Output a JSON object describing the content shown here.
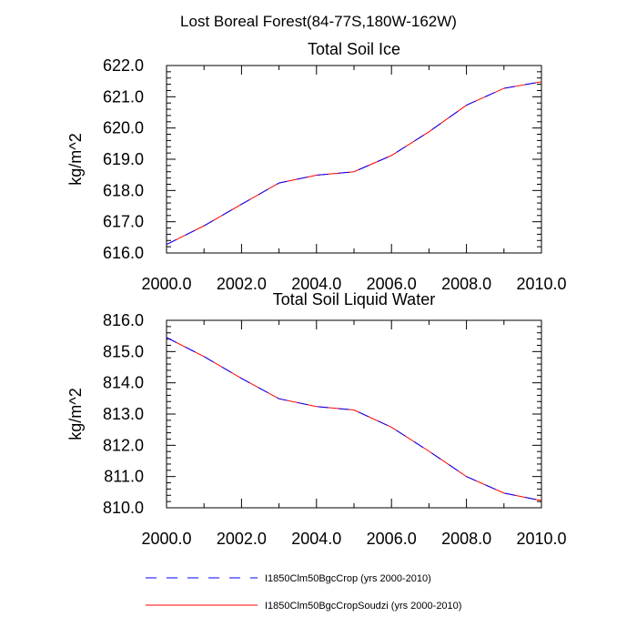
{
  "figure": {
    "suptitle": "Lost Boreal Forest(84-77S,180W-162W)"
  },
  "chart_data": [
    {
      "type": "line",
      "title": "Total Soil Ice",
      "xlabel": "",
      "ylabel": "kg/m^2",
      "xlim": [
        2000,
        2010
      ],
      "ylim": [
        616,
        622
      ],
      "x": [
        2000,
        2001,
        2002,
        2003,
        2004,
        2005,
        2006,
        2007,
        2008,
        2009,
        2010
      ],
      "x_ticks": [
        "2000.0",
        "2002.0",
        "2004.0",
        "2006.0",
        "2008.0",
        "2010.0"
      ],
      "y_ticks": [
        "616.0",
        "617.0",
        "618.0",
        "619.0",
        "620.0",
        "621.0",
        "622.0"
      ],
      "series": [
        {
          "name": "I1850Clm50BgcCrop (yrs 2000-2010)",
          "color": "#0000ff",
          "style": "dashed",
          "values": [
            616.27,
            616.87,
            617.56,
            618.24,
            618.49,
            618.6,
            619.12,
            619.88,
            620.73,
            621.27,
            621.48
          ]
        },
        {
          "name": "I1850Clm50BgcCropSoudzi (yrs 2000-2010)",
          "color": "#ff0000",
          "style": "solid",
          "values": [
            616.27,
            616.87,
            617.56,
            618.24,
            618.49,
            618.6,
            619.12,
            619.88,
            620.73,
            621.27,
            621.48
          ]
        }
      ],
      "grid": false
    },
    {
      "type": "line",
      "title": "Total Soil Liquid Water",
      "xlabel": "",
      "ylabel": "kg/m^2",
      "xlim": [
        2000,
        2010
      ],
      "ylim": [
        810,
        816
      ],
      "x": [
        2000,
        2001,
        2002,
        2003,
        2004,
        2005,
        2006,
        2007,
        2008,
        2009,
        2010
      ],
      "x_ticks": [
        "2000.0",
        "2002.0",
        "2004.0",
        "2006.0",
        "2008.0",
        "2010.0"
      ],
      "y_ticks": [
        "810.0",
        "811.0",
        "812.0",
        "813.0",
        "814.0",
        "815.0",
        "816.0"
      ],
      "series": [
        {
          "name": "I1850Clm50BgcCrop (yrs 2000-2010)",
          "color": "#0000ff",
          "style": "dashed",
          "values": [
            815.45,
            814.84,
            814.14,
            813.49,
            813.24,
            813.13,
            812.58,
            811.81,
            811.0,
            810.47,
            810.23
          ]
        },
        {
          "name": "I1850Clm50BgcCropSoudzi (yrs 2000-2010)",
          "color": "#ff0000",
          "style": "solid",
          "values": [
            815.45,
            814.84,
            814.14,
            813.49,
            813.24,
            813.13,
            812.58,
            811.81,
            811.0,
            810.47,
            810.23
          ]
        }
      ],
      "grid": false
    }
  ],
  "legend": {
    "placement": "bottom",
    "entries": [
      {
        "label": "I1850Clm50BgcCrop (yrs 2000-2010)",
        "color": "#0000ff",
        "style": "dashed"
      },
      {
        "label": "I1850Clm50BgcCropSoudzi (yrs 2000-2010)",
        "color": "#ff0000",
        "style": "solid"
      }
    ]
  }
}
